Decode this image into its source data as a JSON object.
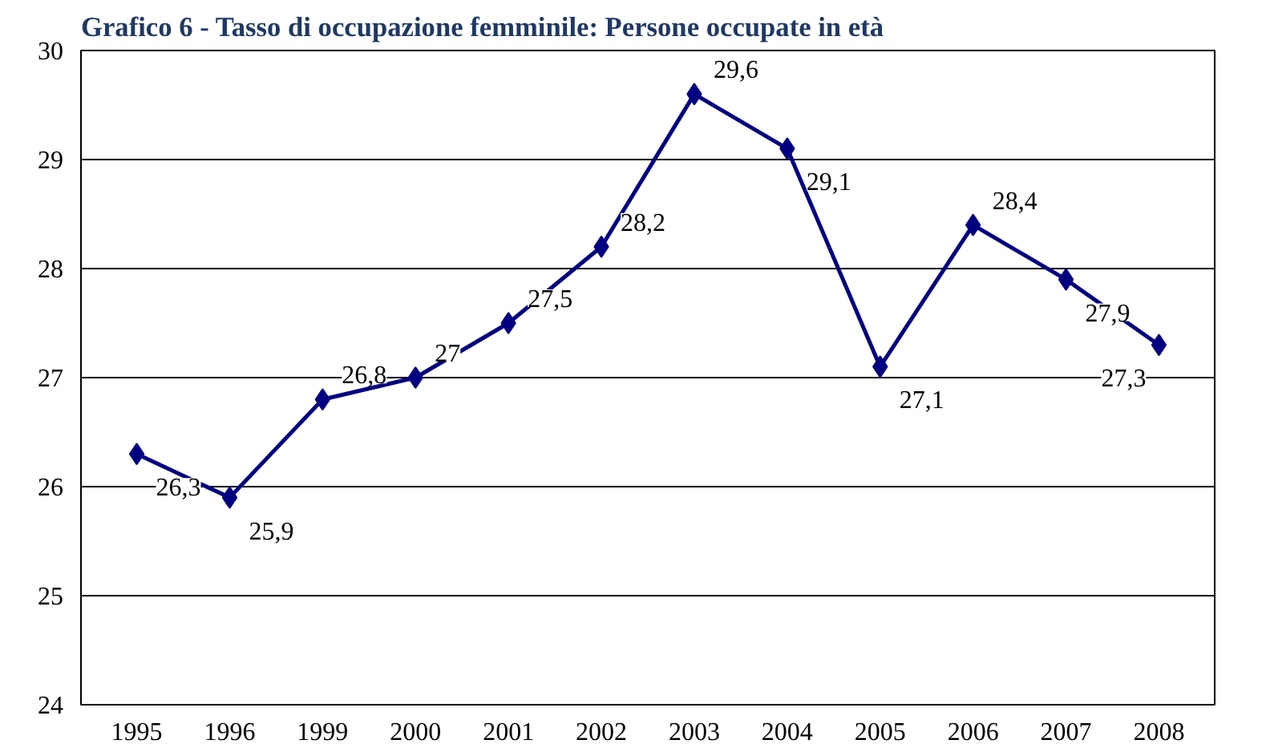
{
  "chart_data": {
    "type": "line",
    "title": "Grafico 6 - Tasso di occupazione femminile: Persone occupate in età",
    "categories": [
      "1995",
      "1996",
      "1999",
      "2000",
      "2001",
      "2002",
      "2003",
      "2004",
      "2005",
      "2006",
      "2007",
      "2008"
    ],
    "series": [
      {
        "color": "#000080",
        "values": [
          26.3,
          25.9,
          26.8,
          27,
          27.5,
          28.2,
          29.6,
          29.1,
          27.1,
          28.4,
          27.9,
          27.3
        ],
        "value_labels": [
          "26,3",
          "25,9",
          "26,8",
          "27",
          "27,5",
          "28,2",
          "29,6",
          "29,1",
          "27,1",
          "28,4",
          "27,9",
          "27,3"
        ]
      }
    ],
    "ylim": [
      24,
      30
    ],
    "yticks": [
      24,
      25,
      26,
      27,
      28,
      29,
      30
    ],
    "grid": "y",
    "marker": "diamond",
    "line_style": "solid"
  }
}
